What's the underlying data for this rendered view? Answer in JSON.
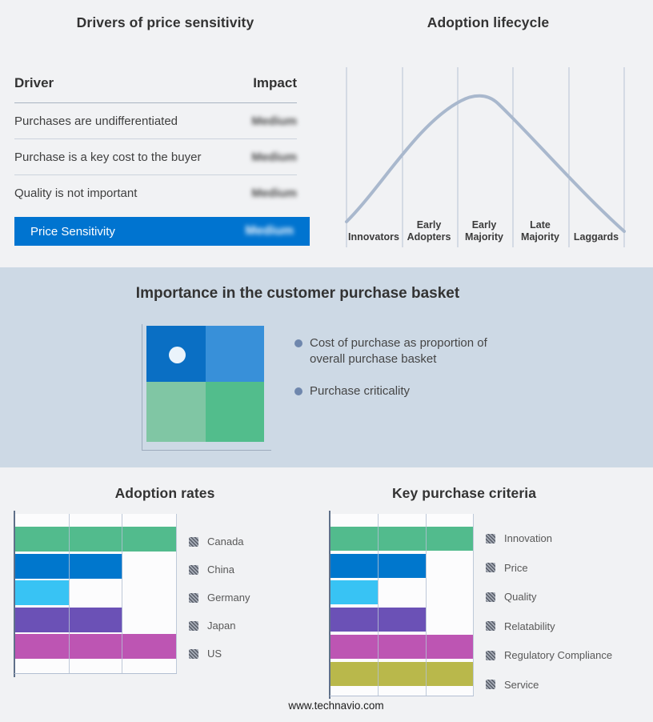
{
  "page": {
    "footer": "www.technavio.com"
  },
  "colors": {
    "band_background": "#cdd9e5",
    "page_background": "#f1f2f4",
    "summary_bar_blue": "#0074d0",
    "curve": "#a9b8cd",
    "palette": [
      "#52bb8d",
      "#0077cd",
      "#38c3f4",
      "#6b51b6",
      "#bd55b3",
      "#b9b84b"
    ]
  },
  "drivers_table": {
    "title": "Drivers of price sensitivity",
    "col_driver": "Driver",
    "col_impact": "Impact",
    "rows": [
      {
        "driver": "Purchases are undifferentiated",
        "impact": "Medium",
        "impact_blurred": true
      },
      {
        "driver": "Purchase is a key cost to the buyer",
        "impact": "Medium",
        "impact_blurred": true
      },
      {
        "driver": "Quality is not important",
        "impact": "Medium",
        "impact_blurred": true
      }
    ],
    "summary": {
      "label": "Price Sensitivity",
      "impact": "Medium",
      "impact_blurred": true
    }
  },
  "lifecycle": {
    "title": "Adoption lifecycle",
    "stages": [
      "Innovators",
      "Early Adopters",
      "Early Majority",
      "Late Majority",
      "Laggards"
    ]
  },
  "purchase_basket": {
    "title": "Importance in the customer purchase basket",
    "bullets": [
      "Cost of purchase as proportion of overall purchase basket",
      "Purchase criticality"
    ],
    "quadrant": {
      "cell_colors": [
        "#0a6fc4",
        "#3890d9",
        "#80c6a4",
        "#52bd8c"
      ],
      "marker_position": "top-left",
      "marker_color": "#eaf3fb"
    }
  },
  "chart_data": [
    {
      "type": "bar",
      "title": "Adoption rates",
      "orientation": "horizontal",
      "categories": [
        "Canada",
        "China",
        "Germany",
        "Japan",
        "US"
      ],
      "values": [
        3,
        2,
        1,
        2,
        3
      ],
      "xlim": [
        0,
        3
      ],
      "grid": true,
      "legend_position": "right",
      "legend_markers": "hatched (values obscured)",
      "colors": [
        "#52bb8d",
        "#0077cd",
        "#38c3f4",
        "#6b51b6",
        "#bd55b3"
      ]
    },
    {
      "type": "bar",
      "title": "Key purchase criteria",
      "orientation": "horizontal",
      "categories": [
        "Innovation",
        "Price",
        "Quality",
        "Relatability",
        "Regulatory Compliance",
        "Service"
      ],
      "values": [
        3,
        2,
        1,
        2,
        3,
        3
      ],
      "xlim": [
        0,
        3
      ],
      "grid": true,
      "legend_position": "right",
      "legend_markers": "hatched (values obscured)",
      "colors": [
        "#52bb8d",
        "#0077cd",
        "#38c3f4",
        "#6b51b6",
        "#bd55b3",
        "#b9b84b"
      ]
    },
    {
      "type": "line",
      "title": "Adoption lifecycle",
      "x_categories": [
        "Innovators",
        "Early Adopters",
        "Early Majority",
        "Late Majority",
        "Laggards"
      ],
      "shape": "bell curve rising from Innovators, peaking over Early Majority, falling to Laggards",
      "gridlines": 6,
      "line_color": "#a9b8cd"
    }
  ]
}
